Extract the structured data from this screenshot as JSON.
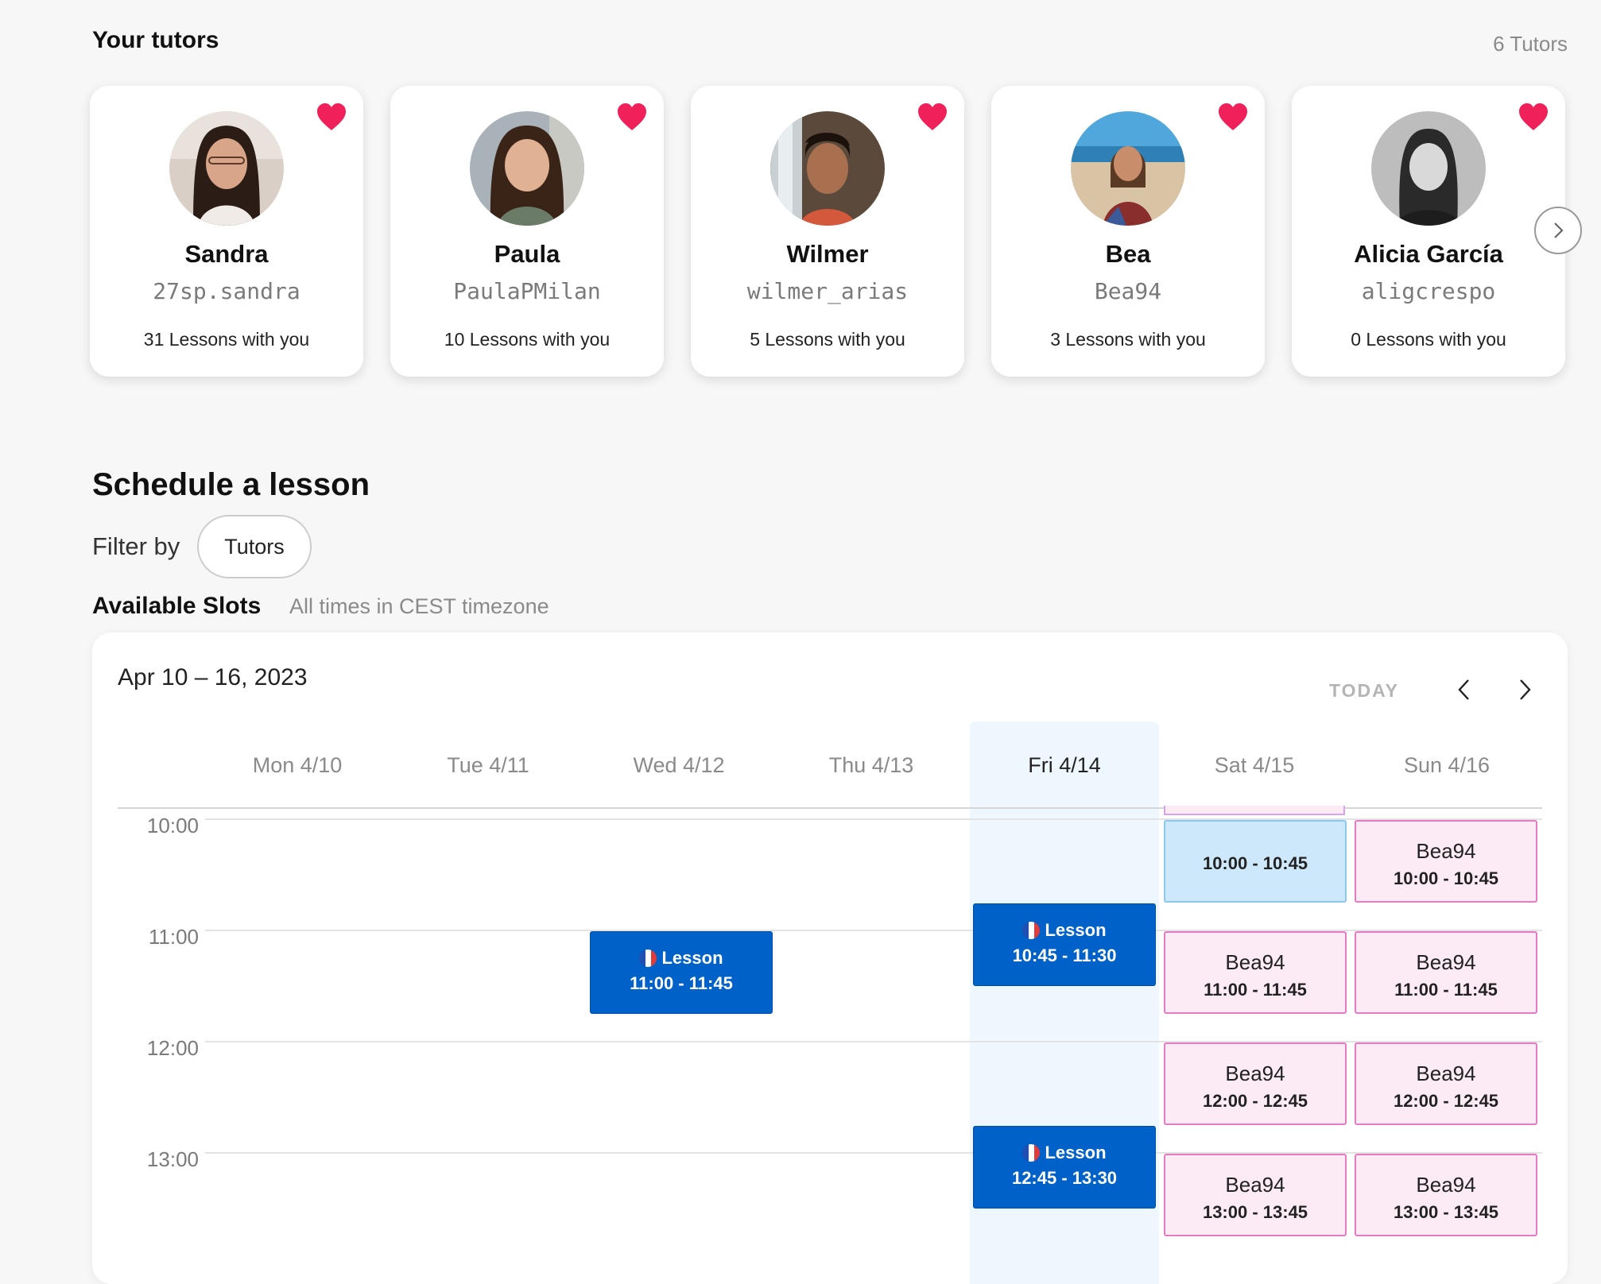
{
  "tutors_section": {
    "title": "Your tutors",
    "count_label": "6 Tutors",
    "tutors": [
      {
        "name": "Sandra",
        "handle": "27sp.sandra",
        "lessons": "31 Lessons with you"
      },
      {
        "name": "Paula",
        "handle": "PaulaPMilan",
        "lessons": "10 Lessons with you"
      },
      {
        "name": "Wilmer",
        "handle": "wilmer_arias",
        "lessons": "5 Lessons with you"
      },
      {
        "name": "Bea",
        "handle": "Bea94",
        "lessons": "3 Lessons with you"
      },
      {
        "name": "Alicia García",
        "handle": "aligcrespo",
        "lessons": "0 Lessons with you"
      }
    ],
    "icons": {
      "favorite": "heart-icon",
      "next": "chevron-right-icon"
    },
    "heart_color": "#f0215a"
  },
  "schedule": {
    "title": "Schedule a lesson",
    "filter_label": "Filter by",
    "filter_chip": "Tutors",
    "available_label": "Available Slots",
    "timezone_note": "All times in CEST timezone"
  },
  "calendar": {
    "date_range": "Apr 10 – 16, 2023",
    "today_label": "TODAY",
    "days": [
      "Mon 4/10",
      "Tue 4/11",
      "Wed 4/12",
      "Thu 4/13",
      "Fri 4/14",
      "Sat 4/15",
      "Sun 4/16"
    ],
    "times": [
      "10:00",
      "11:00",
      "12:00",
      "13:00"
    ],
    "lesson_label": "Lesson",
    "lessons": [
      {
        "time": "11:00 - 11:45"
      },
      {
        "time": "10:45 - 11:30"
      },
      {
        "time": "12:45 - 13:30"
      }
    ],
    "selected_slot": {
      "time": "10:00 - 10:45"
    },
    "available_slots": [
      {
        "tutor": "Bea94",
        "time": "10:00 - 10:45"
      },
      {
        "tutor": "Bea94",
        "time": "11:00 - 11:45"
      },
      {
        "tutor": "Bea94",
        "time": "11:00 - 11:45"
      },
      {
        "tutor": "Bea94",
        "time": "12:00 - 12:45"
      },
      {
        "tutor": "Bea94",
        "time": "12:00 - 12:45"
      },
      {
        "tutor": "Bea94",
        "time": "13:00 - 13:45"
      },
      {
        "tutor": "Bea94",
        "time": "13:00 - 13:45"
      }
    ],
    "colors": {
      "lesson": "#0061c9",
      "available": "#fcebf5",
      "available_border": "#e57bc0",
      "selected": "#cde8fb",
      "today_column": "#eef7fd"
    }
  }
}
